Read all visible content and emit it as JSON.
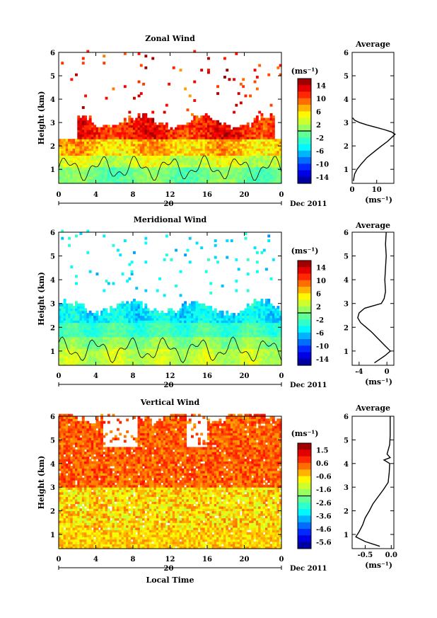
{
  "chart_data": [
    {
      "type": "heatmap",
      "title": "Zonal Wind",
      "ylabel": "Height (km)",
      "xticks": [
        "0",
        "4",
        "8",
        "12",
        "16",
        "20",
        "0"
      ],
      "yticks": [
        "1",
        "2",
        "3",
        "4",
        "5",
        "6"
      ],
      "xlim": [
        0,
        24
      ],
      "ylim": [
        0.4,
        6
      ],
      "date_day": "20",
      "date_label": "Dec 2011",
      "colorbar": {
        "unit": "(ms⁻¹)",
        "ticks": [
          "14",
          "10",
          "6",
          "2",
          "-2",
          "-6",
          "-10",
          "-14"
        ],
        "vmin": -16,
        "vmax": 16
      },
      "echo_top_km": 3.0,
      "average_profile": {
        "title": "Average",
        "xlabel": "(ms⁻¹)",
        "xticks": [
          "0",
          "10"
        ],
        "xlim": [
          0,
          17
        ],
        "heights_km": [
          0.5,
          0.8,
          1.0,
          1.2,
          1.5,
          1.8,
          2.0,
          2.2,
          2.4,
          2.5,
          2.6,
          2.7,
          2.8,
          2.9,
          3.0,
          3.1,
          3.2
        ],
        "values": [
          0.5,
          1.0,
          2.0,
          3.5,
          6.0,
          9.5,
          12.0,
          14.5,
          16.5,
          17.5,
          16.0,
          13.0,
          9.5,
          6.0,
          3.0,
          1.0,
          0.2
        ]
      }
    },
    {
      "type": "heatmap",
      "title": "Meridional Wind",
      "ylabel": "Height (km)",
      "xticks": [
        "0",
        "4",
        "8",
        "12",
        "16",
        "20",
        "0"
      ],
      "yticks": [
        "1",
        "2",
        "3",
        "4",
        "5",
        "6"
      ],
      "xlim": [
        0,
        24
      ],
      "ylim": [
        0.4,
        6
      ],
      "date_day": "20",
      "date_label": "Dec 2011",
      "colorbar": {
        "unit": "(ms⁻¹)",
        "ticks": [
          "14",
          "10",
          "6",
          "2",
          "-2",
          "-6",
          "-10",
          "-14"
        ],
        "vmin": -16,
        "vmax": 16
      },
      "echo_top_km": 2.8,
      "average_profile": {
        "title": "Average",
        "xlabel": "(ms⁻¹)",
        "xticks": [
          "-4",
          "0"
        ],
        "xlim": [
          -5,
          1
        ],
        "heights_km": [
          0.5,
          0.8,
          1.0,
          1.2,
          1.5,
          1.8,
          2.0,
          2.2,
          2.4,
          2.6,
          2.8,
          3.0,
          3.2,
          3.5,
          4.0,
          4.5,
          5.0,
          5.5,
          6.0
        ],
        "values": [
          -1.8,
          -0.3,
          0.5,
          -0.2,
          -1.2,
          -2.2,
          -3.0,
          -3.8,
          -4.2,
          -4.0,
          -3.2,
          -0.8,
          -0.4,
          -0.2,
          -0.3,
          -0.2,
          -0.1,
          -0.2,
          -0.1
        ]
      }
    },
    {
      "type": "heatmap",
      "title": "Vertical Wind",
      "ylabel": "Height (km)",
      "xlabel": "Local Time",
      "xticks": [
        "0",
        "4",
        "8",
        "12",
        "16",
        "20",
        "0"
      ],
      "yticks": [
        "1",
        "2",
        "3",
        "4",
        "5",
        "6"
      ],
      "xlim": [
        0,
        24
      ],
      "ylim": [
        0.4,
        6
      ],
      "date_day": "20",
      "date_label": "Dec 2011",
      "colorbar": {
        "unit": "(ms⁻¹)",
        "ticks": [
          "1.5",
          "0.6",
          "-0.6",
          "-1.6",
          "-2.6",
          "-3.6",
          "-4.6",
          "-5.6"
        ],
        "vmin": -6.4,
        "vmax": 2.0
      },
      "echo_top_km": 6.0,
      "average_profile": {
        "title": "Average",
        "xlabel": "(ms⁻¹)",
        "xticks": [
          "-0.5",
          "0.0"
        ],
        "xlim": [
          -0.75,
          0.05
        ],
        "heights_km": [
          0.5,
          0.7,
          0.9,
          1.1,
          1.4,
          1.7,
          2.0,
          2.3,
          2.6,
          2.9,
          3.2,
          3.6,
          4.0,
          4.15,
          4.25,
          4.4,
          4.8,
          5.2,
          5.6,
          6.0
        ],
        "values": [
          -0.22,
          -0.5,
          -0.68,
          -0.62,
          -0.55,
          -0.5,
          -0.42,
          -0.35,
          -0.25,
          -0.15,
          -0.06,
          -0.04,
          -0.03,
          -0.14,
          -0.02,
          -0.08,
          -0.03,
          -0.02,
          -0.02,
          -0.02
        ]
      }
    }
  ]
}
